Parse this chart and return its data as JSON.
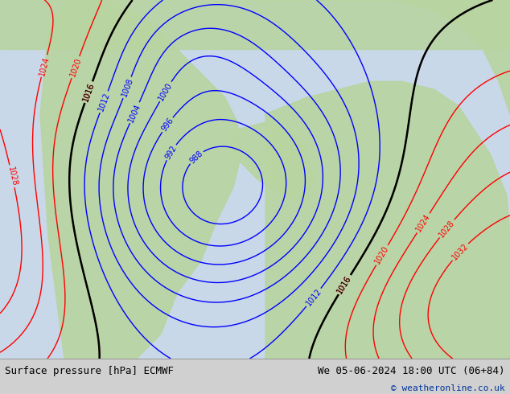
{
  "title_left": "Surface pressure [hPa] ECMWF",
  "title_right": "We 05-06-2024 18:00 UTC (06+84)",
  "copyright": "© weatheronline.co.uk",
  "bg_color": "#d0d0d0",
  "map_bg": "#d8d8d8",
  "land_color": "#b8d4a0",
  "font_family": "monospace",
  "bottom_bar_color": "#e8e8e8",
  "figsize": [
    6.34,
    4.9
  ],
  "dpi": 100
}
